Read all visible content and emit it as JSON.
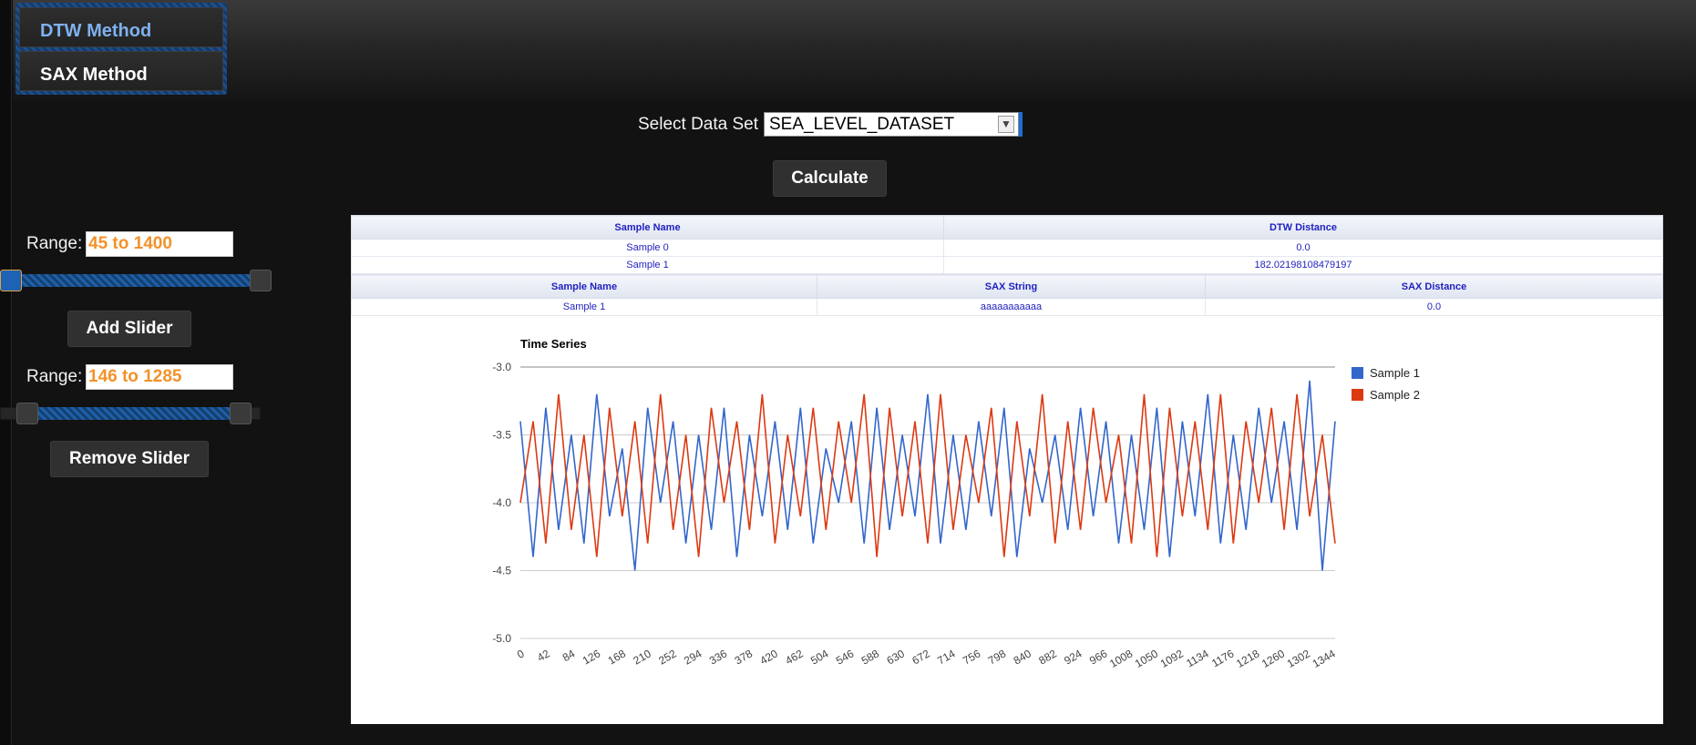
{
  "nav": {
    "tabs": [
      {
        "label": "DTW Method",
        "active": true
      },
      {
        "label": "SAX Method",
        "active": false
      }
    ]
  },
  "dataset": {
    "label": "Select Data Set",
    "selected": "SEA_LEVEL_DATASET"
  },
  "calculate_label": "Calculate",
  "sliders": [
    {
      "label": "Range:",
      "value": "45 to 1400",
      "low": 45,
      "high": 1400
    },
    {
      "label": "Range:",
      "value": "146 to 1285",
      "low": 146,
      "high": 1285
    }
  ],
  "add_slider_label": "Add Slider",
  "remove_slider_label": "Remove Slider",
  "dtw_table": {
    "headers": [
      "Sample Name",
      "DTW Distance"
    ],
    "rows": [
      [
        "Sample 0",
        "0.0"
      ],
      [
        "Sample 1",
        "182.02198108479197"
      ]
    ]
  },
  "sax_table": {
    "headers": [
      "Sample Name",
      "SAX String",
      "SAX Distance"
    ],
    "rows": [
      [
        "Sample 1",
        "aaaaaaaaaaa",
        "0.0"
      ]
    ]
  },
  "colors": {
    "series1": "#3366cc",
    "series2": "#dc3912",
    "accent": "#f39229"
  },
  "chart_data": {
    "type": "line",
    "title": "Time Series",
    "xlabel": "",
    "ylabel": "",
    "ylim": [
      -5.0,
      -3.0
    ],
    "yticks": [
      -3.0,
      -3.5,
      -4.0,
      -4.5,
      -5.0
    ],
    "xticks": [
      0,
      42,
      84,
      126,
      168,
      210,
      252,
      294,
      336,
      378,
      420,
      462,
      504,
      546,
      588,
      630,
      672,
      714,
      756,
      798,
      840,
      882,
      924,
      966,
      1008,
      1050,
      1092,
      1134,
      1176,
      1218,
      1260,
      1302,
      1344
    ],
    "xlim": [
      0,
      1350
    ],
    "legend_position": "right",
    "series": [
      {
        "name": "Sample 1",
        "color": "#3366cc",
        "values": [
          -3.4,
          -4.4,
          -3.3,
          -4.2,
          -3.5,
          -4.3,
          -3.2,
          -4.1,
          -3.6,
          -4.5,
          -3.3,
          -4.0,
          -3.4,
          -4.3,
          -3.5,
          -4.2,
          -3.3,
          -4.4,
          -3.5,
          -4.1,
          -3.4,
          -4.2,
          -3.3,
          -4.3,
          -3.6,
          -4.0,
          -3.4,
          -4.3,
          -3.3,
          -4.2,
          -3.5,
          -4.1,
          -3.2,
          -4.3,
          -3.5,
          -4.2,
          -3.4,
          -4.1,
          -3.3,
          -4.4,
          -3.6,
          -4.0,
          -3.5,
          -4.2,
          -3.3,
          -4.1,
          -3.4,
          -4.3,
          -3.5,
          -4.2,
          -3.3,
          -4.4,
          -3.4,
          -4.1,
          -3.2,
          -4.3,
          -3.5,
          -4.2,
          -3.3,
          -4.0,
          -3.4,
          -4.2,
          -3.1,
          -4.5,
          -3.4
        ]
      },
      {
        "name": "Sample 2",
        "color": "#dc3912",
        "values": [
          -4.0,
          -3.4,
          -4.3,
          -3.2,
          -4.2,
          -3.5,
          -4.4,
          -3.3,
          -4.1,
          -3.4,
          -4.3,
          -3.2,
          -4.2,
          -3.5,
          -4.4,
          -3.3,
          -4.0,
          -3.4,
          -4.2,
          -3.2,
          -4.3,
          -3.5,
          -4.1,
          -3.3,
          -4.2,
          -3.4,
          -4.0,
          -3.2,
          -4.4,
          -3.3,
          -4.1,
          -3.4,
          -4.3,
          -3.2,
          -4.2,
          -3.5,
          -4.0,
          -3.3,
          -4.4,
          -3.4,
          -4.1,
          -3.2,
          -4.3,
          -3.4,
          -4.2,
          -3.3,
          -4.0,
          -3.5,
          -4.3,
          -3.2,
          -4.4,
          -3.3,
          -4.1,
          -3.4,
          -4.2,
          -3.2,
          -4.3,
          -3.4,
          -4.0,
          -3.3,
          -4.2,
          -3.2,
          -4.1,
          -3.5,
          -4.3
        ]
      }
    ]
  }
}
